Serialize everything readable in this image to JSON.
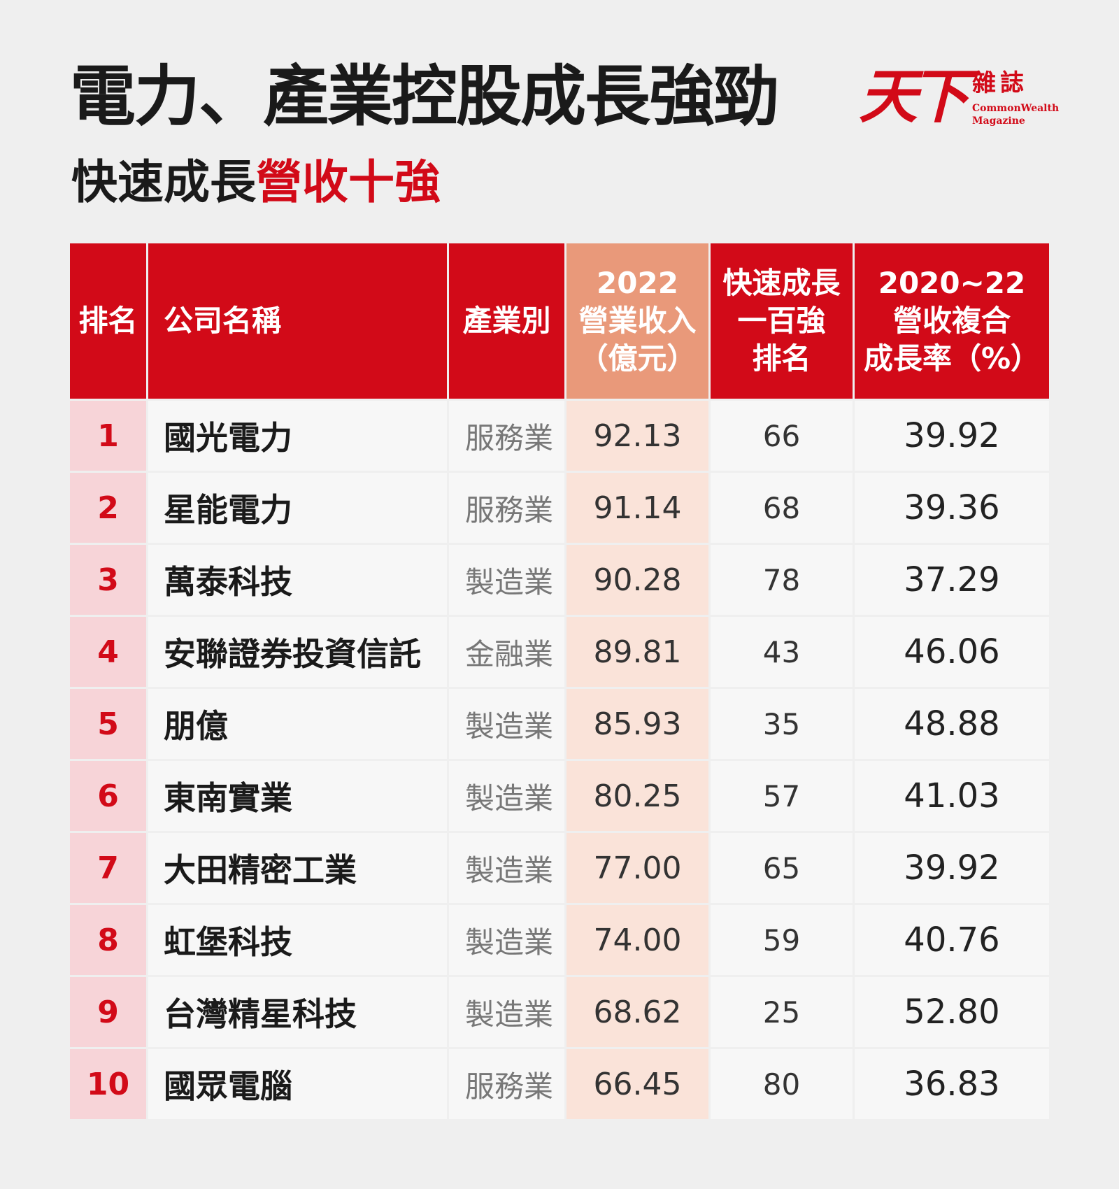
{
  "title": "電力、產業控股成長強勁",
  "subtitle": {
    "prefix": "快速成長",
    "highlight": "營收十強"
  },
  "logo": {
    "mark": "天下",
    "zh": "雜誌",
    "en_line1": "CommonWealth",
    "en_line2": "Magazine"
  },
  "colors": {
    "accent_red": "#d20a18",
    "revenue_header": "#e9997a",
    "revenue_cell": "#fae3d9",
    "rank_cell": "#f7d4d8"
  },
  "table": {
    "headers": {
      "rank": "排名",
      "company": "公司名稱",
      "industry": "產業別",
      "revenue_l1": "2022",
      "revenue_l2": "營業收入",
      "revenue_l3": "（億元）",
      "top100_l1": "快速成長",
      "top100_l2": "一百強",
      "top100_l3": "排名",
      "cagr_l1": "2020~22",
      "cagr_l2": "營收複合",
      "cagr_l3": "成長率（%）"
    },
    "rows": [
      {
        "rank": "1",
        "company": "國光電力",
        "industry": "服務業",
        "revenue": "92.13",
        "top100_rank": "66",
        "cagr": "39.92"
      },
      {
        "rank": "2",
        "company": "星能電力",
        "industry": "服務業",
        "revenue": "91.14",
        "top100_rank": "68",
        "cagr": "39.36"
      },
      {
        "rank": "3",
        "company": "萬泰科技",
        "industry": "製造業",
        "revenue": "90.28",
        "top100_rank": "78",
        "cagr": "37.29"
      },
      {
        "rank": "4",
        "company": "安聯證券投資信託",
        "industry": "金融業",
        "revenue": "89.81",
        "top100_rank": "43",
        "cagr": "46.06"
      },
      {
        "rank": "5",
        "company": "朋億",
        "industry": "製造業",
        "revenue": "85.93",
        "top100_rank": "35",
        "cagr": "48.88"
      },
      {
        "rank": "6",
        "company": "東南實業",
        "industry": "製造業",
        "revenue": "80.25",
        "top100_rank": "57",
        "cagr": "41.03"
      },
      {
        "rank": "7",
        "company": "大田精密工業",
        "industry": "製造業",
        "revenue": "77.00",
        "top100_rank": "65",
        "cagr": "39.92"
      },
      {
        "rank": "8",
        "company": "虹堡科技",
        "industry": "製造業",
        "revenue": "74.00",
        "top100_rank": "59",
        "cagr": "40.76"
      },
      {
        "rank": "9",
        "company": "台灣精星科技",
        "industry": "製造業",
        "revenue": "68.62",
        "top100_rank": "25",
        "cagr": "52.80"
      },
      {
        "rank": "10",
        "company": "國眾電腦",
        "industry": "服務業",
        "revenue": "66.45",
        "top100_rank": "80",
        "cagr": "36.83"
      }
    ]
  }
}
